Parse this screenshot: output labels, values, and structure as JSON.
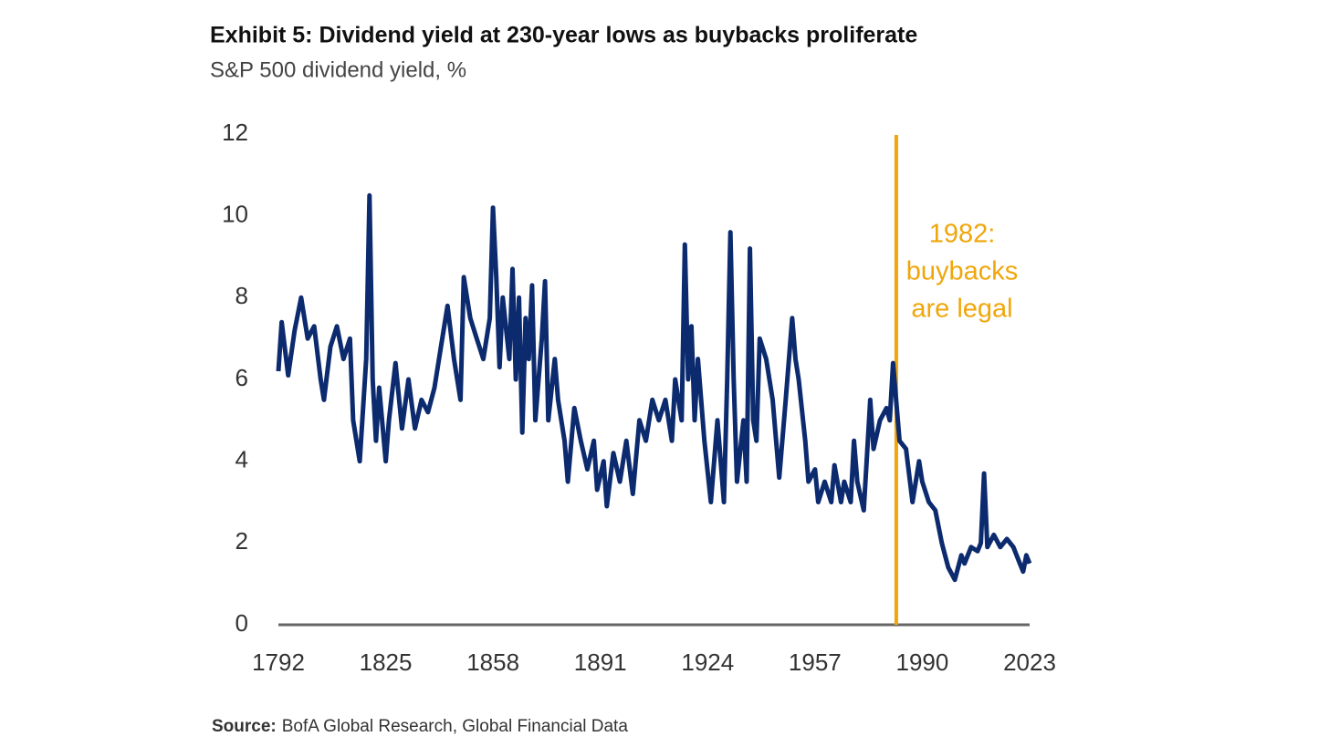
{
  "chart_data": {
    "type": "line",
    "title": "Exhibit 5: Dividend yield at 230-year lows as buybacks proliferate",
    "subtitle": "S&P 500 dividend yield, %",
    "source_label": "Source:",
    "source_text": "BofA Global Research, Global Financial Data",
    "annotation": {
      "x": 1982,
      "color": "#f0a60a",
      "lines": [
        "1982:",
        "buybacks",
        "are legal"
      ]
    },
    "xlim": [
      1792,
      2023
    ],
    "xticks": [
      1792,
      1825,
      1858,
      1891,
      1924,
      1957,
      1990,
      2023
    ],
    "ylim": [
      0,
      12
    ],
    "yticks": [
      0,
      2,
      4,
      6,
      8,
      10,
      12
    ],
    "grid": false,
    "x": [
      1792,
      1793,
      1795,
      1797,
      1799,
      1801,
      1803,
      1805,
      1806,
      1808,
      1810,
      1812,
      1814,
      1815,
      1817,
      1819,
      1820,
      1821,
      1822,
      1823,
      1825,
      1826,
      1828,
      1830,
      1832,
      1834,
      1836,
      1838,
      1840,
      1842,
      1844,
      1846,
      1848,
      1849,
      1851,
      1853,
      1855,
      1857,
      1858,
      1859,
      1860,
      1861,
      1863,
      1864,
      1865,
      1866,
      1867,
      1868,
      1869,
      1870,
      1871,
      1873,
      1874,
      1875,
      1877,
      1878,
      1880,
      1881,
      1883,
      1885,
      1887,
      1889,
      1890,
      1892,
      1893,
      1895,
      1897,
      1899,
      1901,
      1903,
      1905,
      1907,
      1909,
      1911,
      1913,
      1914,
      1916,
      1917,
      1918,
      1919,
      1920,
      1921,
      1923,
      1925,
      1927,
      1929,
      1930,
      1931,
      1932,
      1933,
      1935,
      1936,
      1937,
      1938,
      1939,
      1940,
      1942,
      1944,
      1946,
      1948,
      1950,
      1951,
      1952,
      1954,
      1955,
      1957,
      1958,
      1960,
      1962,
      1963,
      1965,
      1966,
      1968,
      1969,
      1970,
      1972,
      1974,
      1975,
      1977,
      1979,
      1980,
      1981,
      1983,
      1985,
      1987,
      1989,
      1990,
      1992,
      1994,
      1996,
      1998,
      2000,
      2002,
      2003,
      2005,
      2007,
      2008,
      2009,
      2010,
      2012,
      2014,
      2016,
      2018,
      2020,
      2021,
      2022,
      2023
    ],
    "series": [
      {
        "name": "S&P 500 dividend yield",
        "color": "#0c2a6e",
        "values": [
          6.2,
          7.4,
          6.1,
          7.2,
          8.0,
          7.0,
          7.3,
          6.0,
          5.5,
          6.8,
          7.3,
          6.5,
          7.0,
          5.0,
          4.0,
          6.5,
          10.5,
          6.0,
          4.5,
          5.8,
          4.0,
          5.0,
          6.4,
          4.8,
          6.0,
          4.8,
          5.5,
          5.2,
          5.8,
          6.8,
          7.8,
          6.5,
          5.5,
          8.5,
          7.5,
          7.0,
          6.5,
          7.5,
          10.2,
          8.5,
          6.3,
          8.0,
          6.5,
          8.7,
          6.0,
          8.0,
          4.7,
          7.5,
          6.5,
          8.3,
          5.0,
          7.0,
          8.4,
          5.0,
          6.5,
          5.5,
          4.5,
          3.5,
          5.3,
          4.5,
          3.8,
          4.5,
          3.3,
          4.0,
          2.9,
          4.2,
          3.5,
          4.5,
          3.2,
          5.0,
          4.5,
          5.5,
          5.0,
          5.5,
          4.5,
          6.0,
          5.0,
          9.3,
          6.0,
          7.3,
          5.0,
          6.5,
          4.5,
          3.0,
          5.0,
          3.0,
          6.0,
          9.6,
          6.0,
          3.5,
          5.0,
          3.5,
          9.2,
          5.0,
          4.5,
          7.0,
          6.5,
          5.5,
          3.6,
          5.5,
          7.5,
          6.5,
          6.0,
          4.5,
          3.5,
          3.8,
          3.0,
          3.5,
          3.0,
          3.9,
          3.0,
          3.5,
          3.0,
          4.5,
          3.5,
          2.8,
          5.5,
          4.3,
          5.0,
          5.3,
          5.0,
          6.4,
          4.5,
          4.3,
          3.0,
          4.0,
          3.5,
          3.0,
          2.8,
          2.0,
          1.4,
          1.1,
          1.7,
          1.5,
          1.9,
          1.8,
          2.0,
          3.7,
          1.9,
          2.2,
          1.9,
          2.1,
          1.9,
          1.5,
          1.3,
          1.7,
          1.5
        ]
      }
    ]
  }
}
